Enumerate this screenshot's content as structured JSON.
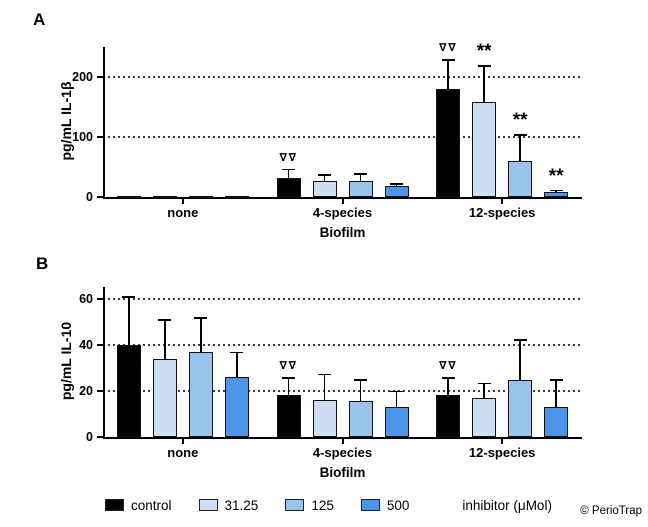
{
  "figure": {
    "panel_a_label": "A",
    "panel_b_label": "B",
    "credit": "© PerioTrap"
  },
  "legend": {
    "items": [
      {
        "label": "control",
        "color": "#000000"
      },
      {
        "label": "31.25",
        "color": "#cfdff3"
      },
      {
        "label": "125",
        "color": "#99c2ec"
      },
      {
        "label": "500",
        "color": "#4a94ea"
      }
    ],
    "suffix": "inhibitor (μMol)"
  },
  "chart_data": [
    {
      "type": "bar",
      "panel": "A",
      "ylabel": "pg/mL IL-1β",
      "xlabel": "Biofilm",
      "categories": [
        "none",
        "4-species",
        "12-species"
      ],
      "series": [
        {
          "name": "control",
          "color": "#000000",
          "values": [
            1,
            32,
            180
          ],
          "errors": [
            0,
            15,
            50
          ]
        },
        {
          "name": "31.25",
          "color": "#cfdff3",
          "values": [
            1,
            27,
            158
          ],
          "errors": [
            0,
            11,
            62
          ]
        },
        {
          "name": "125",
          "color": "#99c2ec",
          "values": [
            1,
            27,
            60
          ],
          "errors": [
            0,
            13,
            45
          ]
        },
        {
          "name": "500",
          "color": "#4a94ea",
          "values": [
            1,
            18,
            8
          ],
          "errors": [
            0,
            5,
            4
          ]
        }
      ],
      "annotations": [
        {
          "series": 0,
          "category": 1,
          "text": "∇∇"
        },
        {
          "series": 0,
          "category": 2,
          "text": "∇∇"
        },
        {
          "series": 1,
          "category": 2,
          "text": "**"
        },
        {
          "series": 2,
          "category": 2,
          "text": "**"
        },
        {
          "series": 3,
          "category": 2,
          "text": "**"
        }
      ],
      "yticks": [
        0,
        100,
        200
      ],
      "ylim": [
        0,
        250
      ],
      "grid": "horizontal dotted at 100 and 200",
      "legend_position": "bottom"
    },
    {
      "type": "bar",
      "panel": "B",
      "ylabel": "pg/mL IL-10",
      "xlabel": "Biofilm",
      "categories": [
        "none",
        "4-species",
        "12-species"
      ],
      "series": [
        {
          "name": "control",
          "color": "#000000",
          "values": [
            40,
            18,
            18
          ],
          "errors": [
            21,
            8,
            8
          ]
        },
        {
          "name": "31.25",
          "color": "#cfdff3",
          "values": [
            34,
            16,
            17
          ],
          "errors": [
            17,
            11.5,
            6.5
          ]
        },
        {
          "name": "125",
          "color": "#99c2ec",
          "values": [
            37,
            15.5,
            24.5
          ],
          "errors": [
            15,
            9.5,
            18
          ]
        },
        {
          "name": "500",
          "color": "#4a94ea",
          "values": [
            26,
            13,
            13
          ],
          "errors": [
            11,
            7,
            12
          ]
        }
      ],
      "annotations": [
        {
          "series": 0,
          "category": 1,
          "text": "∇∇"
        },
        {
          "series": 0,
          "category": 2,
          "text": "∇∇"
        }
      ],
      "yticks": [
        0,
        20,
        40,
        60
      ],
      "ylim": [
        0,
        65
      ],
      "grid": "horizontal dotted at 20, 40 and 60",
      "legend_position": "bottom"
    }
  ]
}
